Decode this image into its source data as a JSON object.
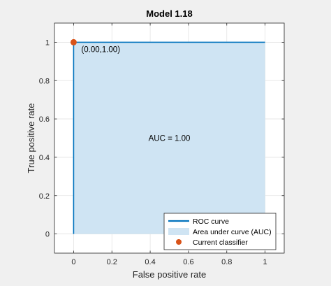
{
  "chart_data": {
    "type": "area",
    "title": "Model 1.18",
    "xlabel": "False positive rate",
    "ylabel": "True positive rate",
    "xlim": [
      -0.1,
      1.1
    ],
    "ylim": [
      -0.1,
      1.1
    ],
    "xticks": [
      0,
      0.2,
      0.4,
      0.6,
      0.8,
      1
    ],
    "xtick_labels": [
      "0",
      "0.2",
      "0.4",
      "0.6",
      "0.8",
      "1"
    ],
    "yticks": [
      0,
      0.2,
      0.4,
      0.6,
      0.8,
      1
    ],
    "ytick_labels": [
      "0",
      "0.2",
      "0.4",
      "0.6",
      "0.8",
      "1"
    ],
    "grid": true,
    "legend_position": "bottom-right",
    "series": [
      {
        "name": "ROC curve",
        "kind": "line",
        "color": "#0072bd",
        "x": [
          0,
          0,
          1
        ],
        "y": [
          0,
          1,
          1
        ]
      },
      {
        "name": "Area under curve (AUC)",
        "kind": "area",
        "color": "#cfe4f3",
        "x": [
          0,
          0,
          1,
          1
        ],
        "y": [
          0,
          1,
          1,
          0
        ]
      },
      {
        "name": "Current classifier",
        "kind": "scatter",
        "color": "#d95319",
        "x": [
          0
        ],
        "y": [
          1
        ]
      }
    ],
    "annotations": [
      {
        "text": "(0.00,1.00)",
        "x": 0.0,
        "y": 1.0
      },
      {
        "text": "AUC = 1.00",
        "x": 0.5,
        "y": 0.5
      }
    ]
  }
}
